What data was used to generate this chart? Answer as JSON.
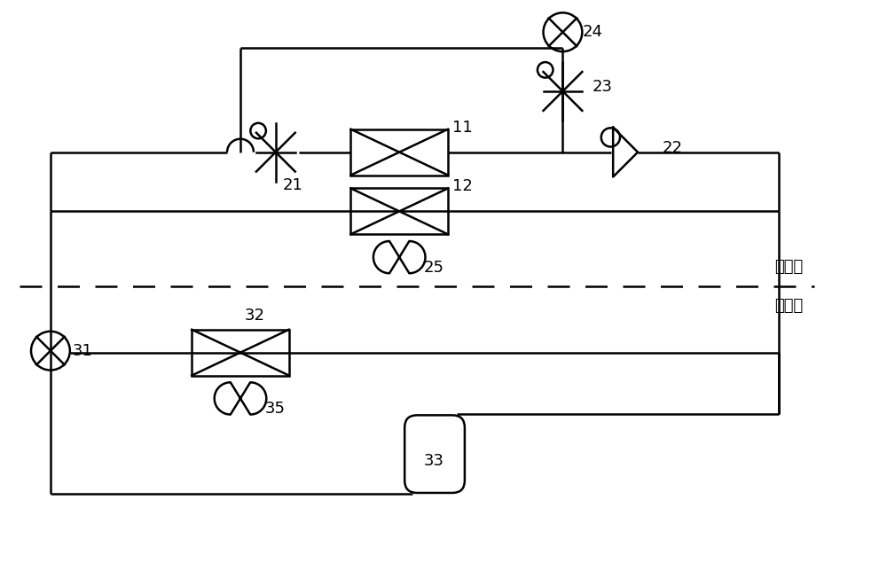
{
  "bg_color": "#ffffff",
  "line_color": "#000000",
  "indoor_label": "室内侧",
  "outdoor_label": "室外侧",
  "lw": 1.8,
  "fig_w": 10.0,
  "fig_h": 6.43,
  "dpi": 100
}
